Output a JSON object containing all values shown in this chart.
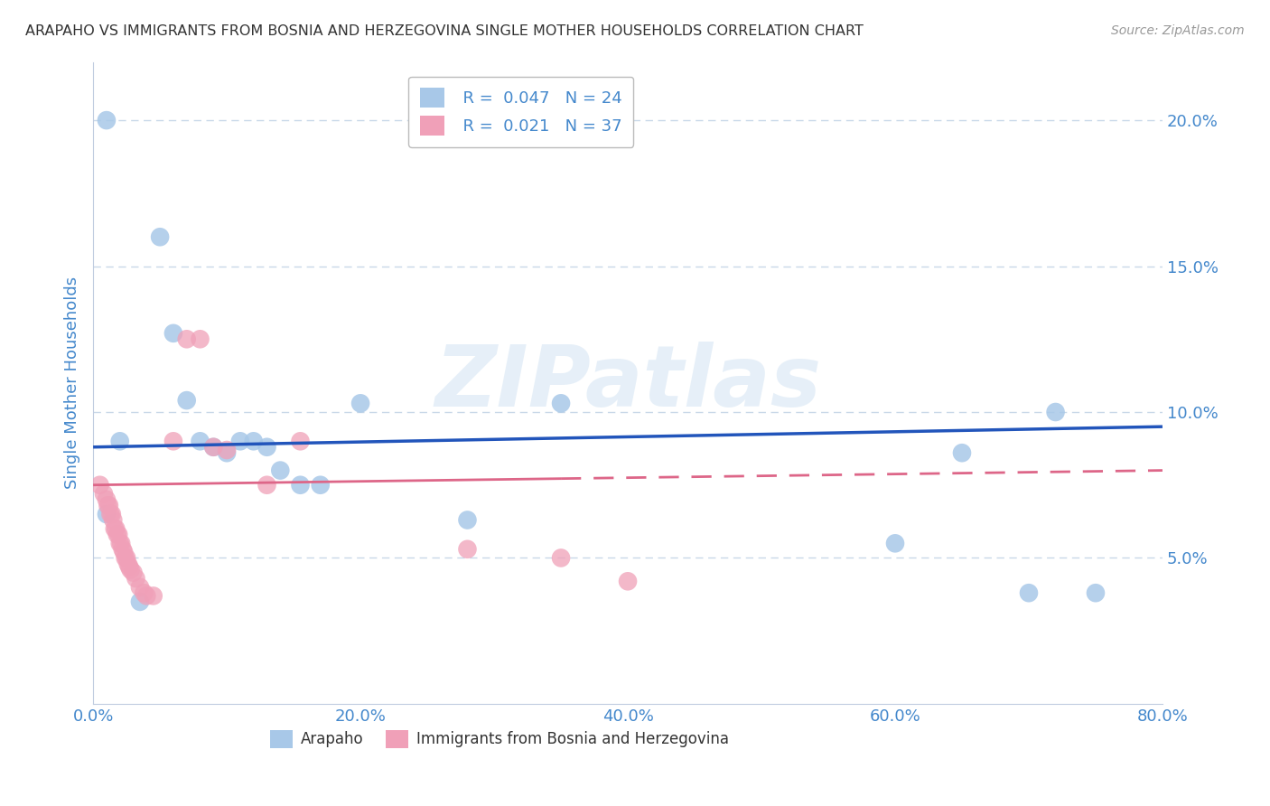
{
  "title": "ARAPAHO VS IMMIGRANTS FROM BOSNIA AND HERZEGOVINA SINGLE MOTHER HOUSEHOLDS CORRELATION CHART",
  "source": "Source: ZipAtlas.com",
  "ylabel": "Single Mother Households",
  "watermark": "ZIPatlas",
  "xlim": [
    0.0,
    0.8
  ],
  "ylim": [
    0.0,
    0.22
  ],
  "xticks": [
    0.0,
    0.2,
    0.4,
    0.6,
    0.8
  ],
  "yticks": [
    0.05,
    0.1,
    0.15,
    0.2
  ],
  "xtick_labels": [
    "0.0%",
    "20.0%",
    "40.0%",
    "60.0%",
    "80.0%"
  ],
  "ytick_labels": [
    "5.0%",
    "10.0%",
    "15.0%",
    "20.0%"
  ],
  "legend1_r": "0.047",
  "legend1_n": "24",
  "legend2_r": "0.021",
  "legend2_n": "37",
  "arapaho_color": "#a8c8e8",
  "bosnia_color": "#f0a0b8",
  "arapaho_line_color": "#2255bb",
  "bosnia_line_color": "#dd6688",
  "grid_color": "#c8d8e8",
  "axis_color": "#c0cce0",
  "text_color": "#4488cc",
  "background_color": "#ffffff",
  "title_color": "#333333",
  "source_color": "#999999",
  "arapaho_trendline_start_y": 0.088,
  "arapaho_trendline_end_y": 0.095,
  "bosnia_trendline_start_y": 0.075,
  "bosnia_trendline_end_y": 0.08,
  "arapaho_x": [
    0.01,
    0.02,
    0.035,
    0.05,
    0.06,
    0.07,
    0.08,
    0.09,
    0.1,
    0.11,
    0.12,
    0.13,
    0.14,
    0.155,
    0.17,
    0.2,
    0.28,
    0.35,
    0.6,
    0.65,
    0.7,
    0.72,
    0.75,
    0.01
  ],
  "arapaho_y": [
    0.2,
    0.09,
    0.035,
    0.16,
    0.127,
    0.104,
    0.09,
    0.088,
    0.086,
    0.09,
    0.09,
    0.088,
    0.08,
    0.075,
    0.075,
    0.103,
    0.063,
    0.103,
    0.055,
    0.086,
    0.038,
    0.1,
    0.038,
    0.065
  ],
  "bosnia_x": [
    0.005,
    0.008,
    0.01,
    0.011,
    0.012,
    0.013,
    0.014,
    0.015,
    0.016,
    0.017,
    0.018,
    0.019,
    0.02,
    0.021,
    0.022,
    0.023,
    0.024,
    0.025,
    0.026,
    0.027,
    0.028,
    0.03,
    0.032,
    0.035,
    0.038,
    0.04,
    0.045,
    0.06,
    0.07,
    0.08,
    0.09,
    0.1,
    0.13,
    0.155,
    0.28,
    0.35,
    0.4
  ],
  "bosnia_y": [
    0.075,
    0.072,
    0.07,
    0.068,
    0.068,
    0.065,
    0.065,
    0.063,
    0.06,
    0.06,
    0.058,
    0.058,
    0.055,
    0.055,
    0.053,
    0.052,
    0.05,
    0.05,
    0.048,
    0.047,
    0.046,
    0.045,
    0.043,
    0.04,
    0.038,
    0.037,
    0.037,
    0.09,
    0.125,
    0.125,
    0.088,
    0.087,
    0.075,
    0.09,
    0.053,
    0.05,
    0.042
  ]
}
